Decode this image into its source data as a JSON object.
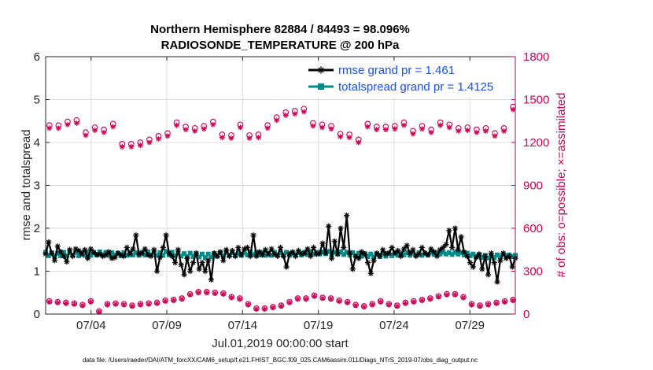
{
  "chart_data": {
    "type": "line",
    "title_line1": "Northern Hemisphere 82884 / 84493 = 98.096%",
    "title_line2": "RADIOSONDE_TEMPERATURE @ 200 hPa",
    "xlabel": "Jul.01,2019 00:00:00 start",
    "ylabel_left": "rmse and totalspread",
    "ylabel_right": "# of obs: o=possible; ×=assimilated",
    "footer": "data file: /Users/raeder/DAI/ATM_forcXX/CAM6_setup/f.e21.FHIST_BGC.f09_025.CAM6assim.011/Diags_NTrS_2019-07/obs_diag_output.nc",
    "xlim": [
      1,
      32
    ],
    "x_ticks": [
      4,
      9,
      14,
      19,
      24,
      29
    ],
    "x_tick_labels": [
      "07/04",
      "07/09",
      "07/14",
      "07/19",
      "07/24",
      "07/29"
    ],
    "ylim_left": [
      0,
      6
    ],
    "y_ticks_left": [
      "0",
      "1",
      "2",
      "3",
      "4",
      "5",
      "6"
    ],
    "ylim_right": [
      0,
      1800
    ],
    "y_ticks_right": [
      "0",
      "300",
      "600",
      "900",
      "1200",
      "1500",
      "1800"
    ],
    "colors": {
      "rmse": "#000000",
      "spread": "#008b8b",
      "obs": "#cc0055",
      "right_axis": "#cc0055",
      "legend_text": "#1a52e6"
    },
    "legend": [
      {
        "name": "rmse grand pr = 1.461",
        "color": "#000000"
      },
      {
        "name": "totalspread grand pr = 1.4125",
        "color": "#008b8b"
      }
    ],
    "series": [
      {
        "name": "rmse",
        "axis": "left",
        "values": [
          1.4,
          1.68,
          1.42,
          1.25,
          1.58,
          1.45,
          1.35,
          1.22,
          1.5,
          1.35,
          1.52,
          1.48,
          1.4,
          1.5,
          1.3,
          1.52,
          1.44,
          1.38,
          1.4,
          1.35,
          1.38,
          1.45,
          1.3,
          1.32,
          1.42,
          1.38,
          1.35,
          1.55,
          1.4,
          1.52,
          1.84,
          1.4,
          1.42,
          1.52,
          1.38,
          1.35,
          1.5,
          1.0,
          1.32,
          1.55,
          1.84,
          1.42,
          1.35,
          1.2,
          1.5,
          1.15,
          0.92,
          1.3,
          1.0,
          1.2,
          1.42,
          1.05,
          1.2,
          1.0,
          1.25,
          0.8,
          1.42,
          1.35,
          1.45,
          1.25,
          1.5,
          1.35,
          1.48,
          1.35,
          1.55,
          1.38,
          1.52,
          1.55,
          1.35,
          1.84,
          1.35,
          1.45,
          1.38,
          1.5,
          1.4,
          1.52,
          1.4,
          1.35,
          1.55,
          1.35,
          1.1,
          1.4,
          1.45,
          1.35,
          1.48,
          1.4,
          1.42,
          1.52,
          1.35,
          1.55,
          1.4,
          1.42,
          1.65,
          1.42,
          2.05,
          1.3,
          1.7,
          1.4,
          2.0,
          1.55,
          2.3,
          1.42,
          1.05,
          1.35,
          1.3,
          1.45,
          1.4,
          1.2,
          0.95,
          1.25,
          1.42,
          1.35,
          1.5,
          1.4,
          1.42,
          1.55,
          1.42,
          1.48,
          1.35,
          1.52,
          1.6,
          1.42,
          1.5,
          1.35,
          1.4,
          1.55,
          1.42,
          1.38,
          1.52,
          1.45,
          1.35,
          1.5,
          1.55,
          1.62,
          1.95,
          1.55,
          2.0,
          1.5,
          1.8,
          1.45,
          1.35,
          1.2,
          1.1,
          1.32,
          1.4,
          1.05,
          1.35,
          0.92,
          1.42,
          1.2,
          0.75,
          1.25,
          1.42,
          1.3,
          1.35,
          1.1,
          1.3
        ]
      },
      {
        "name": "totalspread",
        "axis": "left",
        "values": [
          1.44,
          1.36,
          1.43,
          1.35,
          1.42,
          1.36,
          1.44,
          1.36,
          1.43,
          1.37,
          1.44,
          1.36,
          1.43,
          1.37,
          1.44,
          1.37,
          1.43,
          1.38,
          1.45,
          1.38,
          1.44,
          1.37,
          1.43,
          1.37,
          1.42,
          1.36,
          1.43,
          1.37,
          1.44,
          1.38,
          1.43,
          1.37,
          1.44,
          1.38,
          1.45,
          1.38,
          1.44,
          1.37,
          1.43,
          1.37,
          1.46,
          1.38,
          1.44,
          1.36,
          1.42,
          1.35,
          1.41,
          1.34,
          1.42,
          1.34,
          1.41,
          1.33,
          1.4,
          1.32,
          1.4,
          1.33,
          1.41,
          1.35,
          1.43,
          1.36,
          1.44,
          1.37,
          1.43,
          1.36,
          1.42,
          1.37,
          1.44,
          1.38,
          1.45,
          1.39,
          1.44,
          1.38,
          1.43,
          1.37,
          1.42,
          1.37,
          1.44,
          1.38,
          1.43,
          1.38,
          1.44,
          1.37,
          1.42,
          1.38,
          1.43,
          1.38,
          1.44,
          1.39,
          1.45,
          1.4,
          1.44,
          1.4,
          1.45,
          1.41,
          1.46,
          1.4,
          1.44,
          1.4,
          1.45,
          1.39,
          1.44,
          1.38,
          1.43,
          1.36,
          1.42,
          1.35,
          1.41,
          1.34,
          1.4,
          1.33,
          1.4,
          1.34,
          1.41,
          1.35,
          1.42,
          1.36,
          1.43,
          1.37,
          1.42,
          1.38,
          1.43,
          1.37,
          1.42,
          1.38,
          1.43,
          1.37,
          1.42,
          1.38,
          1.44,
          1.39,
          1.43,
          1.4,
          1.44,
          1.4,
          1.43,
          1.39,
          1.44,
          1.4,
          1.43,
          1.38,
          1.42,
          1.36,
          1.4,
          1.34,
          1.38,
          1.32,
          1.37,
          1.31,
          1.36,
          1.32,
          1.38,
          1.33,
          1.39,
          1.35,
          1.38,
          1.34,
          1.37
        ]
      },
      {
        "name": "obs possible (day)",
        "axis": "right",
        "marker": "circle",
        "values": [
          1320,
          1320,
          1345,
          1355,
          1270,
          1305,
          1290,
          1330,
          1190,
          1190,
          1200,
          1220,
          1245,
          1265,
          1340,
          1310,
          1300,
          1315,
          1345,
          1255,
          1250,
          1325,
          1250,
          1255,
          1320,
          1375,
          1410,
          1420,
          1435,
          1335,
          1325,
          1315,
          1260,
          1255,
          1220,
          1330,
          1310,
          1310,
          1315,
          1340,
          1280,
          1315,
          1290,
          1340,
          1325,
          1300,
          1305,
          1290,
          1300,
          1265,
          1300,
          1450
        ]
      },
      {
        "name": "obs assimilated (day)",
        "axis": "right",
        "marker": "asterisk",
        "values": [
          1300,
          1300,
          1325,
          1335,
          1250,
          1285,
          1270,
          1310,
          1170,
          1170,
          1180,
          1200,
          1225,
          1245,
          1320,
          1290,
          1280,
          1295,
          1325,
          1235,
          1230,
          1305,
          1230,
          1235,
          1300,
          1355,
          1390,
          1400,
          1415,
          1315,
          1305,
          1295,
          1240,
          1235,
          1200,
          1310,
          1290,
          1290,
          1295,
          1320,
          1260,
          1295,
          1270,
          1320,
          1305,
          1280,
          1285,
          1270,
          1280,
          1245,
          1280,
          1430
        ]
      },
      {
        "name": "obs possible (night)",
        "axis": "right",
        "marker": "circle",
        "values": [
          90,
          85,
          80,
          75,
          65,
          90,
          20,
          70,
          75,
          70,
          60,
          70,
          75,
          80,
          95,
          100,
          110,
          140,
          155,
          155,
          150,
          145,
          120,
          110,
          70,
          40,
          40,
          50,
          60,
          85,
          110,
          110,
          130,
          115,
          110,
          95,
          85,
          65,
          55,
          70,
          90,
          70,
          60,
          80,
          90,
          100,
          110,
          125,
          140,
          140,
          120,
          70,
          60,
          70,
          80,
          90,
          100
        ]
      },
      {
        "name": "obs assimilated (night)",
        "axis": "right",
        "marker": "asterisk",
        "values": [
          85,
          80,
          75,
          70,
          60,
          85,
          15,
          65,
          70,
          65,
          55,
          65,
          70,
          75,
          90,
          95,
          105,
          135,
          150,
          150,
          145,
          140,
          115,
          105,
          65,
          35,
          35,
          45,
          55,
          80,
          105,
          105,
          125,
          110,
          105,
          90,
          80,
          60,
          50,
          65,
          85,
          65,
          55,
          75,
          85,
          95,
          105,
          120,
          135,
          135,
          115,
          65,
          55,
          65,
          75,
          85,
          95
        ]
      }
    ]
  }
}
